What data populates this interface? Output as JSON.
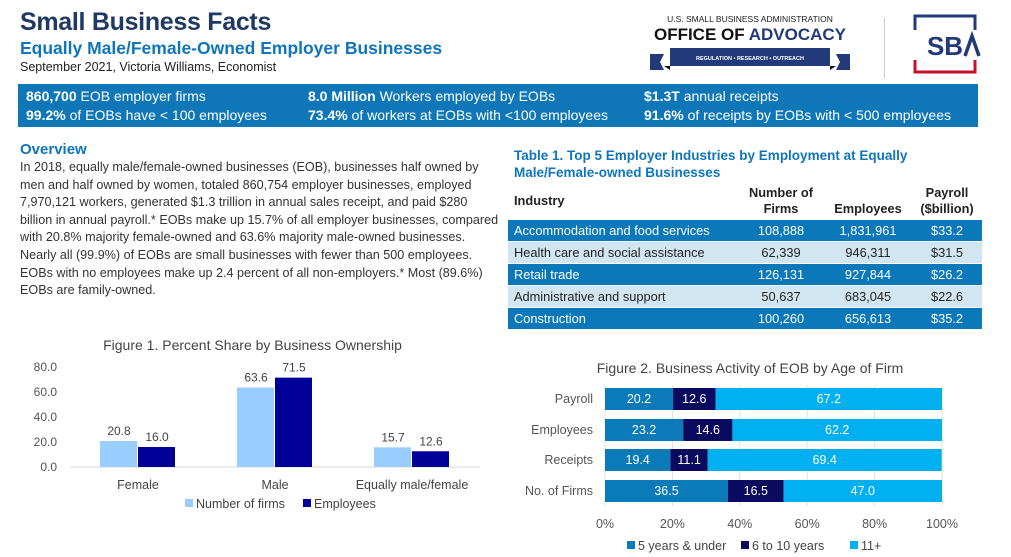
{
  "header": {
    "title": "Small Business Facts",
    "subtitle": "Equally Male/Female-Owned Employer Businesses",
    "byline": "September 2021, Victoria Williams, Economist",
    "logo_advocacy_text": "U.S. SMALL BUSINESS ADMINISTRATION OFFICE OF ADVOCACY REGULATION • RESEARCH • OUTREACH",
    "logo_sba_text": "SBA"
  },
  "highlights": [
    {
      "bold": "860,700",
      "text": " EOB employer firms"
    },
    {
      "bold": "8.0 Million",
      "text": " Workers employed by EOBs"
    },
    {
      "bold": "$1.3T",
      "text": " annual receipts"
    },
    {
      "bold": "99.2%",
      "text": " of EOBs have < 100 employees"
    },
    {
      "bold": "73.4%",
      "text": " of workers at EOBs with <100 employees"
    },
    {
      "bold": "91.6%",
      "text": " of receipts by EOBs with < 500 employees"
    }
  ],
  "overview": {
    "heading": "Overview",
    "body": "In 2018, equally male/female-owned businesses (EOB), businesses half owned by men and half owned by women, totaled 860,754 employer businesses, employed 7,970,121 workers, generated $1.3 trillion in annual sales receipt, and paid $280 billion in annual payroll.* EOBs make up 15.7% of all employer businesses, compared with 20.8% majority female-owned and 63.6% majority male-owned businesses. Nearly all (99.9%) of EOBs are small businesses with fewer than 500 employees. EOBs with no employees make up 2.4 percent of all non-employers.* Most (89.6%) EOBs are family-owned."
  },
  "table": {
    "title": "Table 1. Top 5 Employer Industries by Employment at Equally Male/Female-owned Businesses",
    "headers": [
      "Industry",
      "Number of Firms",
      "Employees",
      "Payroll ($billion)"
    ],
    "rows": [
      [
        "Accommodation and food services",
        "108,888",
        "1,831,961",
        "$33.2"
      ],
      [
        "Health care and social assistance",
        "62,339",
        "946,311",
        "$31.5"
      ],
      [
        "Retail trade",
        "126,131",
        "927,844",
        "$26.2"
      ],
      [
        "Administrative and support",
        "50,637",
        "683,045",
        "$22.6"
      ],
      [
        "Construction",
        "100,260",
        "656,613",
        "$35.2"
      ]
    ]
  },
  "chart_data": [
    {
      "type": "bar",
      "title": "Figure 1. Percent Share by Business Ownership",
      "categories": [
        "Female",
        "Male",
        "Equally male/female"
      ],
      "series": [
        {
          "name": "Number of firms",
          "values": [
            20.8,
            63.6,
            15.7
          ],
          "color": "#99ccff"
        },
        {
          "name": "Employees",
          "values": [
            16.0,
            71.5,
            12.6
          ],
          "color": "#000099"
        }
      ],
      "ylim": [
        0,
        80
      ],
      "yticks": [
        0,
        20,
        40,
        60,
        80
      ],
      "grid": false,
      "legend": "bottom"
    },
    {
      "type": "bar",
      "orientation": "horizontal-stacked",
      "title": "Figure 2. Business Activity of EOB by Age of Firm",
      "categories": [
        "Payroll",
        "Employees",
        "Receipts",
        "No. of Firms"
      ],
      "series": [
        {
          "name": "5 years & under",
          "values": [
            20.2,
            23.2,
            19.4,
            36.5
          ],
          "color": "#0b7ab8"
        },
        {
          "name": "6 to 10 years",
          "values": [
            12.6,
            14.6,
            11.1,
            16.5
          ],
          "color": "#0a0a5e"
        },
        {
          "name": "11+",
          "values": [
            67.2,
            62.2,
            69.4,
            47.0
          ],
          "color": "#00b0f0"
        }
      ],
      "xlim": [
        0,
        100
      ],
      "xticks": [
        "0%",
        "20%",
        "40%",
        "60%",
        "80%",
        "100%"
      ],
      "grid": true,
      "legend": "bottom"
    }
  ]
}
